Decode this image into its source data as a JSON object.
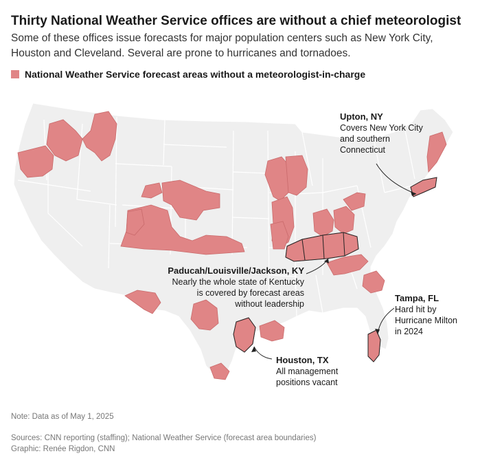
{
  "header": {
    "title": "Thirty National Weather Service offices are without a chief meteorologist",
    "subtitle": "Some of these offices issue forecasts for major population centers such as New York City, Houston and Cleveland. Several are prone to hurricanes and tornadoes."
  },
  "legend": {
    "label": "National Weather Service forecast areas without a meteorologist-in-charge",
    "color": "#e08586"
  },
  "colors": {
    "land": "#efefef",
    "state_border": "#ffffff",
    "highlight": "#e08586",
    "outline": "#222222"
  },
  "annotations": {
    "upton": {
      "title": "Upton, NY",
      "body": [
        "Covers New York City",
        "and southern",
        "Connecticut"
      ]
    },
    "kentucky": {
      "title": "Paducah/Louisville/Jackson, KY",
      "body": [
        "Nearly the whole state of Kentucky",
        "is covered by forecast areas",
        "without leadership"
      ]
    },
    "tampa": {
      "title": "Tampa, FL",
      "body": [
        "Hard hit by",
        "Hurricane Milton",
        "in 2024"
      ]
    },
    "houston": {
      "title": "Houston, TX",
      "body": [
        "All management",
        "positions vacant"
      ]
    }
  },
  "footer": {
    "note": "Note: Data as of May 1, 2025",
    "sources": "Sources: CNN reporting (staffing); National Weather Service (forecast area boundaries)",
    "graphic": "Graphic: Renée Rigdon, CNN"
  }
}
